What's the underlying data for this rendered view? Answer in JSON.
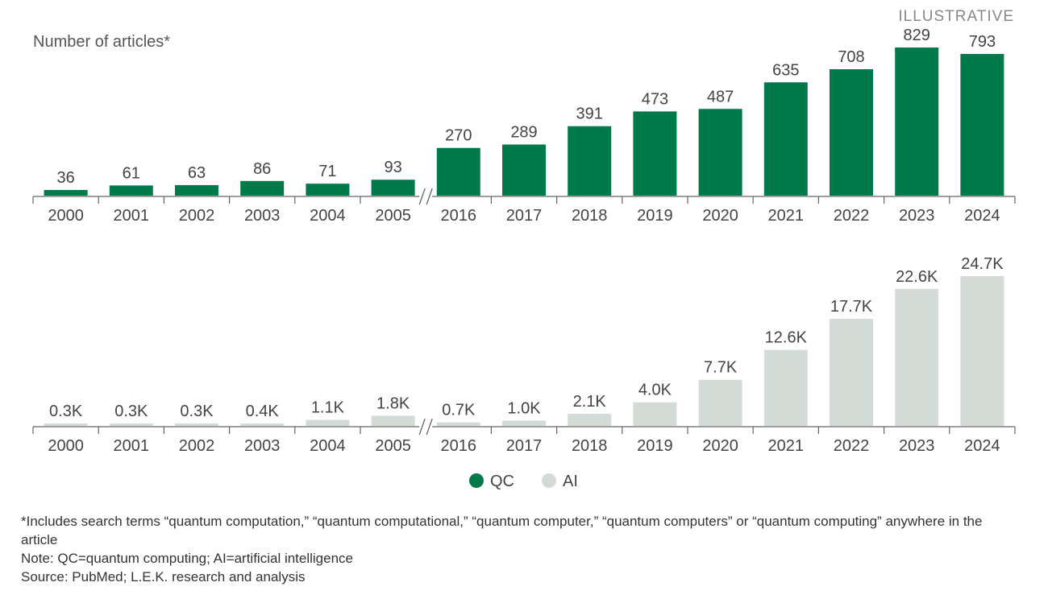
{
  "corner_tag": "ILLUSTRATIVE",
  "legend": [
    {
      "label": "QC",
      "color": "#007a4a"
    },
    {
      "label": "AI",
      "color": "#d3dbd7"
    }
  ],
  "chart_data": [
    {
      "type": "bar",
      "name": "QC",
      "ylabel": "Number of articles*",
      "color": "#007a4a",
      "categories": [
        "2000",
        "2001",
        "2002",
        "2003",
        "2004",
        "2005",
        "2016",
        "2017",
        "2018",
        "2019",
        "2020",
        "2021",
        "2022",
        "2023",
        "2024"
      ],
      "values": [
        36,
        61,
        63,
        86,
        71,
        93,
        270,
        289,
        391,
        473,
        487,
        635,
        708,
        829,
        793
      ],
      "labels": [
        "36",
        "61",
        "63",
        "86",
        "71",
        "93",
        "270",
        "289",
        "391",
        "473",
        "487",
        "635",
        "708",
        "829",
        "793"
      ],
      "ylim": [
        0,
        829
      ],
      "axis_break_after": "2005"
    },
    {
      "type": "bar",
      "name": "AI",
      "color": "#d3dbd7",
      "categories": [
        "2000",
        "2001",
        "2002",
        "2003",
        "2004",
        "2005",
        "2016",
        "2017",
        "2018",
        "2019",
        "2020",
        "2021",
        "2022",
        "2023",
        "2024"
      ],
      "values": [
        300,
        300,
        300,
        400,
        1100,
        1800,
        700,
        1000,
        2100,
        4000,
        7700,
        12600,
        17700,
        22600,
        24700
      ],
      "labels": [
        "0.3K",
        "0.3K",
        "0.3K",
        "0.4K",
        "1.1K",
        "1.8K",
        "0.7K",
        "1.0K",
        "2.1K",
        "4.0K",
        "7.7K",
        "12.6K",
        "17.7K",
        "22.6K",
        "24.7K"
      ],
      "ylim": [
        0,
        24700
      ],
      "axis_break_after": "2005"
    }
  ],
  "footnotes": {
    "includes": "*Includes search terms “quantum computation,” “quantum computational,” “quantum computer,” “quantum computers” or “quantum computing” anywhere in the article",
    "note": "Note: QC=quantum computing; AI=artificial intelligence",
    "source": "Source: PubMed; L.E.K. research and analysis"
  }
}
